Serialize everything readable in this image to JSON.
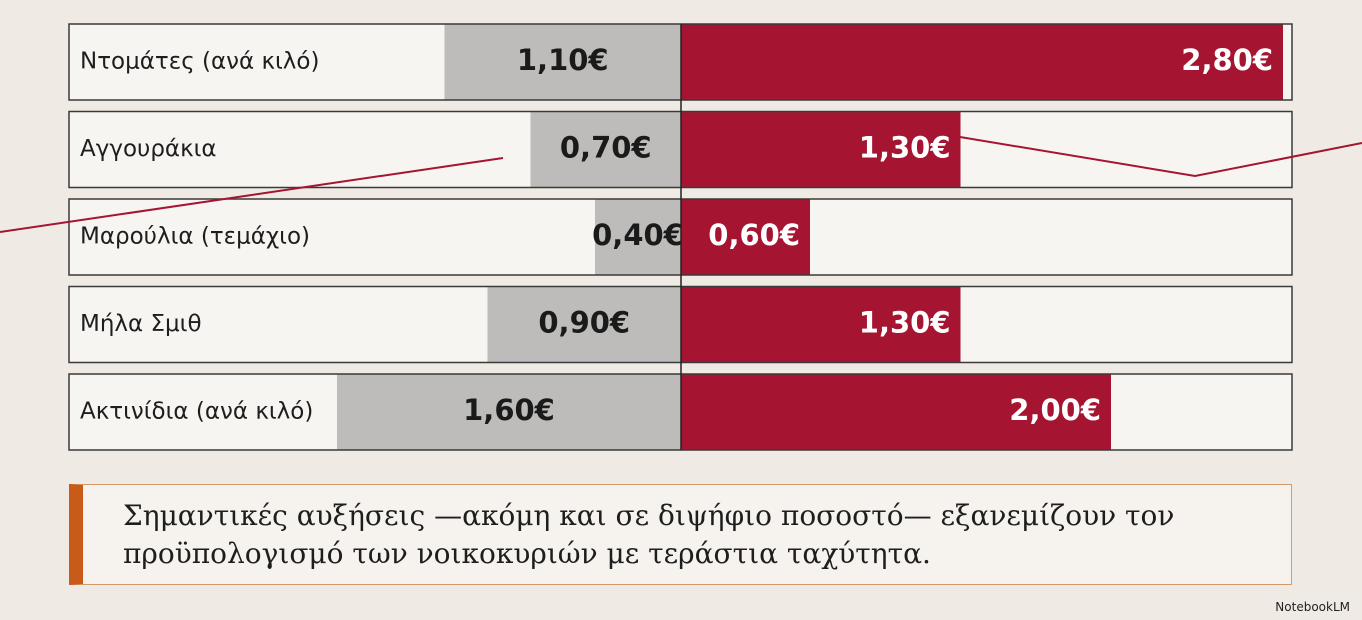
{
  "chart_data": {
    "type": "bar",
    "categories": [
      "Ντομάτες (ανά κιλό)",
      "Αγγουράκια",
      "Μαρούλια (τεμάχιο)",
      "Μήλα Σμιθ",
      "Ακτινίδια (ανά κιλό)"
    ],
    "series": [
      {
        "color": "#bdbcba",
        "values": [
          1.1,
          0.7,
          0.4,
          0.9,
          1.6
        ],
        "value_labels": [
          "1,10€",
          "0,70€",
          "0,40€",
          "0,90€",
          "1,60€"
        ]
      },
      {
        "color": "#a51431",
        "values": [
          2.8,
          1.3,
          0.6,
          1.3,
          2.0
        ],
        "value_labels": [
          "2,80€",
          "1,30€",
          "0,60€",
          "1,30€",
          "2,00€"
        ]
      }
    ],
    "annotation": "Σημαντικές αυξήσεις —ακόμη και σε διψήφιο ποσοστό— εξανεμίζουν τον προϋπολογισμό των νοικοκυριών με τεράστια ταχύτητα.",
    "credit": "NotebookLM"
  }
}
